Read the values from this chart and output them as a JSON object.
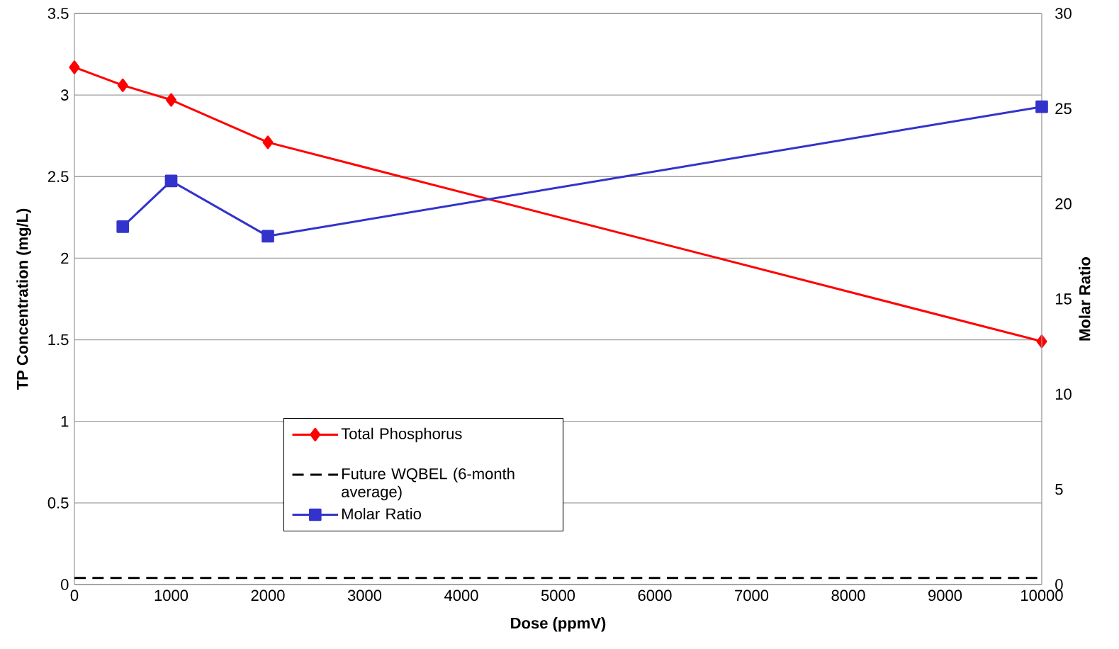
{
  "chart_data": {
    "type": "line",
    "xlabel": "Dose (ppmV)",
    "ylabel": "TP Concentration (mg/L)",
    "y2label": "Molar Ratio",
    "series": [
      {
        "name": "Total Phosphorus",
        "color": "#ff0000",
        "x": [
          0,
          500,
          1000,
          2000,
          10000
        ],
        "values": [
          3.17,
          3.06,
          2.97,
          2.71,
          1.49
        ],
        "marker": "diamond",
        "line_style": "solid"
      },
      {
        "name": "Future WQBEL (6-month average)",
        "color": "#000000",
        "x": [
          0,
          10000
        ],
        "values": [
          0.04,
          0.04
        ],
        "marker": "none",
        "line_style": "dashed"
      },
      {
        "name": "Molar Ratio",
        "color": "#3333cc",
        "x": [
          500,
          1000,
          2000,
          10000
        ],
        "values": [
          18.8,
          21.2,
          18.3,
          25.1
        ],
        "marker": "square",
        "line_style": "solid",
        "axis": "y2"
      }
    ],
    "xlim": [
      0,
      10000
    ],
    "xticks": [
      0,
      1000,
      2000,
      3000,
      4000,
      5000,
      6000,
      7000,
      8000,
      9000,
      10000
    ],
    "ylim": [
      0,
      3.5
    ],
    "yticks": [
      0,
      0.5,
      1,
      1.5,
      2,
      2.5,
      3,
      3.5
    ],
    "y2lim": [
      0,
      30
    ],
    "y2ticks": [
      0,
      5,
      10,
      15,
      20,
      25,
      30
    ],
    "grid": "y",
    "legend": "bottom left"
  }
}
